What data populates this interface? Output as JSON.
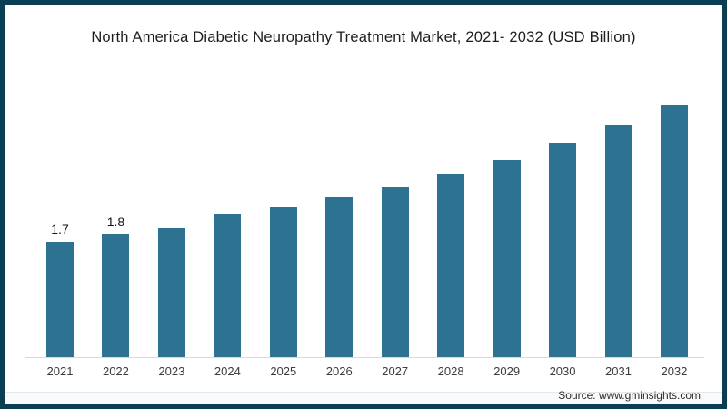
{
  "frame": {
    "border_color": "#093e53",
    "background": "#ffffff"
  },
  "title": "North America Diabetic Neuropathy Treatment Market, 2021- 2032 (USD Billion)",
  "source": "Source: www.gminsights.com",
  "chart_data": {
    "type": "bar",
    "title": "North America Diabetic Neuropathy Treatment Market, 2021- 2032 (USD Billion)",
    "categories": [
      "2021",
      "2022",
      "2023",
      "2024",
      "2025",
      "2026",
      "2027",
      "2028",
      "2029",
      "2030",
      "2031",
      "2032"
    ],
    "values": [
      1.7,
      1.8,
      1.9,
      2.1,
      2.2,
      2.35,
      2.5,
      2.7,
      2.9,
      3.15,
      3.4,
      3.7
    ],
    "data_labels": [
      "1.7",
      "1.8",
      "",
      "",
      "",
      "",
      "",
      "",
      "",
      "",
      "",
      ""
    ],
    "xlabel": "",
    "ylabel": "",
    "ylim": [
      0,
      4
    ],
    "grid": false,
    "legend": false,
    "bar_color": "#2e7291",
    "axis_line_color": "#d9d9d9",
    "label_color": "#121212",
    "tick_color": "#3c3c3c"
  }
}
